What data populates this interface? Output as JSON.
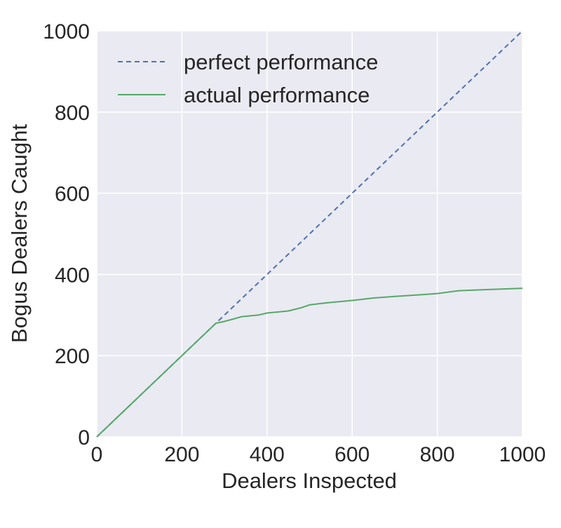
{
  "chart_data": {
    "type": "line",
    "title": "",
    "xlabel": "Dealers Inspected",
    "ylabel": "Bogus Dealers Caught",
    "xlim": [
      0,
      1000
    ],
    "ylim": [
      0,
      1000
    ],
    "x_ticks": [
      0,
      200,
      400,
      600,
      800,
      1000
    ],
    "y_ticks": [
      0,
      200,
      400,
      600,
      800,
      1000
    ],
    "x_tick_labels": [
      "0",
      "200",
      "400",
      "600",
      "800",
      "1000"
    ],
    "y_tick_labels": [
      "0",
      "200",
      "400",
      "600",
      "800",
      "1000"
    ],
    "grid": true,
    "legend_position": "top-left",
    "series": [
      {
        "name": "perfect performance",
        "style": "dashed",
        "color": "#4c72b0",
        "x": [
          0,
          1000
        ],
        "y": [
          0,
          1000
        ]
      },
      {
        "name": "actual performance",
        "style": "solid",
        "color": "#55a868",
        "x": [
          0,
          100,
          200,
          280,
          295,
          320,
          340,
          380,
          400,
          450,
          480,
          500,
          540,
          600,
          650,
          700,
          760,
          800,
          850,
          900,
          1000
        ],
        "y": [
          0,
          100,
          200,
          280,
          283,
          290,
          296,
          300,
          305,
          310,
          318,
          325,
          330,
          336,
          342,
          346,
          350,
          353,
          360,
          362,
          366
        ]
      }
    ]
  },
  "colors": {
    "plot_background": "#eaeaf2",
    "grid": "#ffffff",
    "text": "#262626"
  }
}
